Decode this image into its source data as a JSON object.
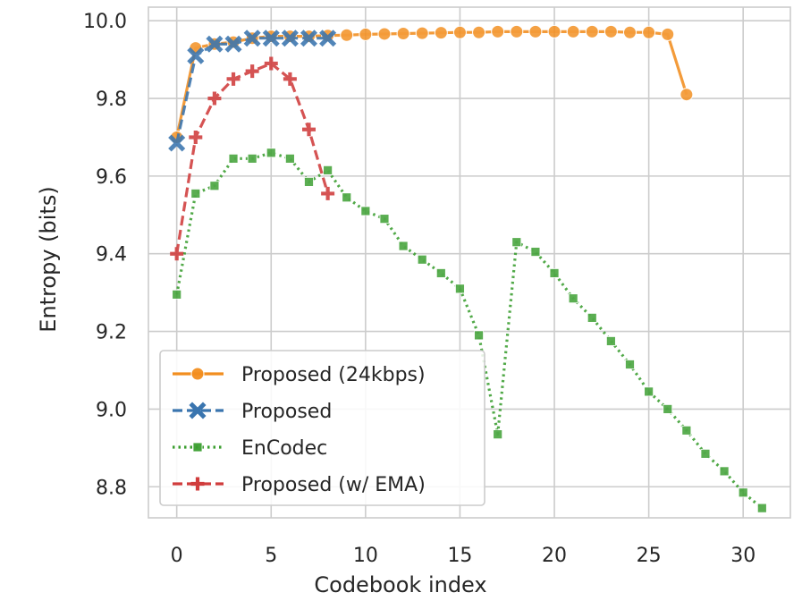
{
  "chart_data": {
    "type": "line",
    "title": "",
    "xlabel": "Codebook index",
    "ylabel": "Entropy (bits)",
    "xlim": [
      -1.5,
      32.5
    ],
    "ylim": [
      8.72,
      10.035
    ],
    "xticks": [
      0,
      5,
      10,
      15,
      20,
      25,
      30
    ],
    "xtick_labels": [
      "0",
      "5",
      "10",
      "15",
      "20",
      "25",
      "30"
    ],
    "yticks": [
      8.8,
      9.0,
      9.2,
      9.4,
      9.6,
      9.8,
      10.0
    ],
    "ytick_labels": [
      "8.8",
      "9.0",
      "9.2",
      "9.4",
      "9.6",
      "9.8",
      "10.0"
    ],
    "grid": true,
    "legend_position": "lower-left",
    "series": [
      {
        "name": "Proposed (24kbps)",
        "color": "#f28e1f",
        "marker": "circle",
        "line_style": "solid",
        "x": [
          0,
          1,
          2,
          3,
          4,
          5,
          6,
          7,
          8,
          9,
          10,
          11,
          12,
          13,
          14,
          15,
          16,
          17,
          18,
          19,
          20,
          21,
          22,
          23,
          24,
          25,
          26,
          27
        ],
        "values": [
          9.7,
          9.93,
          9.94,
          9.945,
          9.955,
          9.96,
          9.96,
          9.96,
          9.962,
          9.963,
          9.965,
          9.966,
          9.967,
          9.968,
          9.969,
          9.97,
          9.97,
          9.972,
          9.972,
          9.972,
          9.972,
          9.972,
          9.972,
          9.972,
          9.97,
          9.97,
          9.965,
          9.81
        ]
      },
      {
        "name": "Proposed",
        "color": "#3a75af",
        "marker": "x",
        "line_style": "dashed",
        "x": [
          0,
          1,
          2,
          3,
          4,
          5,
          6,
          7,
          8
        ],
        "values": [
          9.685,
          9.91,
          9.94,
          9.94,
          9.955,
          9.955,
          9.955,
          9.955,
          9.955
        ]
      },
      {
        "name": "EnCodec",
        "color": "#3a9e2f",
        "marker": "square",
        "line_style": "dotted",
        "x": [
          0,
          1,
          2,
          3,
          4,
          5,
          6,
          7,
          8,
          9,
          10,
          11,
          12,
          13,
          14,
          15,
          16,
          17,
          18,
          19,
          20,
          21,
          22,
          23,
          24,
          25,
          26,
          27,
          28,
          29,
          30,
          31
        ],
        "values": [
          9.295,
          9.555,
          9.575,
          9.645,
          9.645,
          9.66,
          9.645,
          9.585,
          9.615,
          9.545,
          9.51,
          9.49,
          9.42,
          9.385,
          9.35,
          9.31,
          9.19,
          8.935,
          9.43,
          9.405,
          9.35,
          9.285,
          9.235,
          9.175,
          9.115,
          9.045,
          9.0,
          8.945,
          8.885,
          8.84,
          8.785,
          8.745
        ]
      },
      {
        "name": "Proposed (w/ EMA)",
        "color": "#d03c3c",
        "marker": "plus",
        "line_style": "dashed",
        "x": [
          0,
          1,
          2,
          3,
          4,
          5,
          6,
          7,
          8
        ],
        "values": [
          9.4,
          9.7,
          9.8,
          9.85,
          9.87,
          9.89,
          9.85,
          9.72,
          9.555
        ]
      }
    ]
  }
}
